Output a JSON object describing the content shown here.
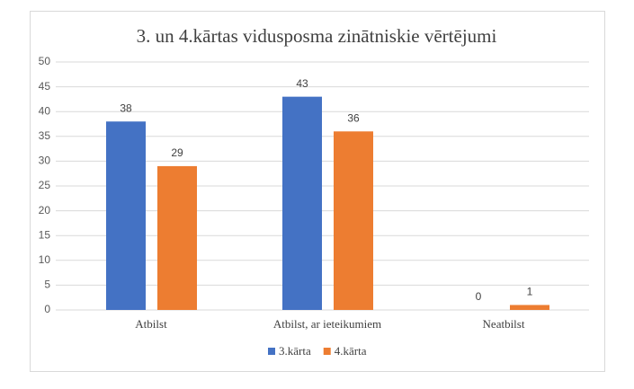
{
  "chart_data": {
    "type": "bar",
    "title": "3. un 4.kārtas vidusposma zinātniskie vērtējumi",
    "categories": [
      "Atbilst",
      "Atbilst, ar ieteikumiem",
      "Neatbilst"
    ],
    "series": [
      {
        "name": "3.kārta",
        "color": "#4472c4",
        "values": [
          38,
          43,
          0
        ]
      },
      {
        "name": "4.kārta",
        "color": "#ed7d31",
        "values": [
          29,
          36,
          1
        ]
      }
    ],
    "ylim": [
      0,
      50
    ],
    "yticks": [
      0,
      5,
      10,
      15,
      20,
      25,
      30,
      35,
      40,
      45,
      50
    ],
    "grid": true,
    "legend": "bottom"
  }
}
